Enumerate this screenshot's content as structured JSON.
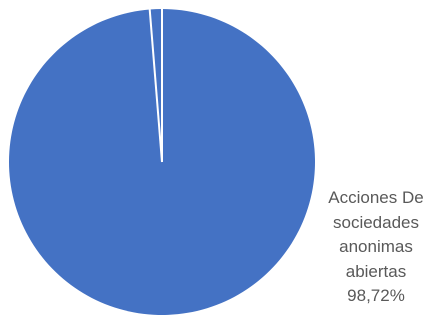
{
  "chart_data": {
    "type": "pie",
    "title": "",
    "slices": [
      {
        "label_lines": [
          "Acciones De",
          "sociedades",
          "anonimas",
          "abiertas"
        ],
        "value": 98.72,
        "value_text": "98,72%",
        "color": "#4472c4"
      },
      {
        "label_lines": [],
        "value": 1.28,
        "value_text": "",
        "color": "#4472c4"
      }
    ],
    "separator_color": "#ffffff",
    "legend": "none"
  }
}
